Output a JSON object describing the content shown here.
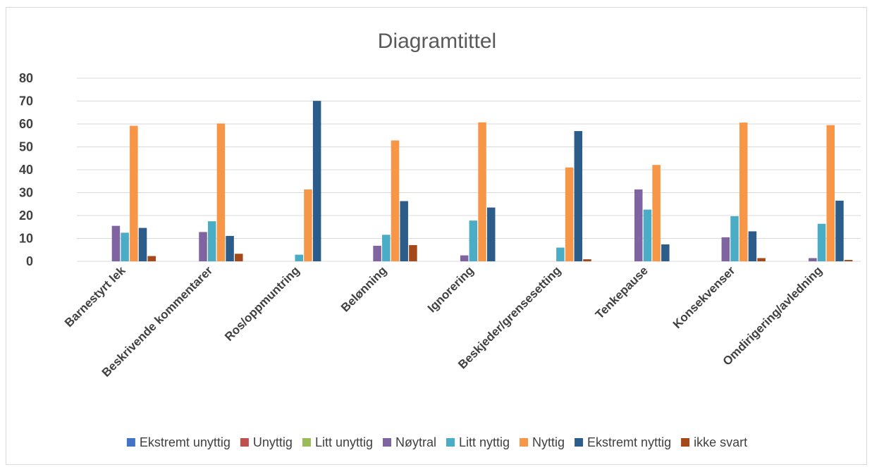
{
  "chart_data": {
    "type": "bar",
    "title": "Diagramtittel",
    "xlabel": "",
    "ylabel": "",
    "ylim": [
      0,
      80
    ],
    "yticks": [
      0,
      10,
      20,
      30,
      40,
      50,
      60,
      70,
      80
    ],
    "grid": true,
    "legend_position": "bottom",
    "categories": [
      "Barnestyrt lek",
      "Beskrivende kommentarer",
      "Ros/oppmuntring",
      "Belønning",
      "Ignorering",
      "Beskjeder/grensesetting",
      "Tenkepause",
      "Konsekvenser",
      "Omdirigering/avledning"
    ],
    "series": [
      {
        "name": "Ekstremt unyttig",
        "color": "#4472c4",
        "values": [
          0,
          0,
          0,
          0,
          0,
          0,
          0,
          0,
          0
        ]
      },
      {
        "name": "Unyttig",
        "color": "#c0504d",
        "values": [
          0,
          0,
          0,
          0,
          0,
          0,
          0,
          0,
          0
        ]
      },
      {
        "name": "Litt unyttig",
        "color": "#9bbb59",
        "values": [
          0,
          0,
          0,
          0,
          0,
          0,
          0,
          0,
          0
        ]
      },
      {
        "name": "Nøytral",
        "color": "#8064a2",
        "values": [
          15.5,
          12.8,
          0,
          6.8,
          2.6,
          0,
          31.4,
          10.5,
          1.4
        ]
      },
      {
        "name": "Litt nyttig",
        "color": "#4bacc6",
        "values": [
          12.5,
          17.5,
          2.9,
          11.6,
          17.8,
          6,
          22.6,
          19.7,
          16.4
        ]
      },
      {
        "name": "Nyttig",
        "color": "#f79646",
        "values": [
          59.2,
          60.2,
          31.4,
          52.8,
          60.7,
          41,
          42.1,
          60.6,
          59.5
        ]
      },
      {
        "name": "Ekstremt nyttig",
        "color": "#2c5d8a",
        "values": [
          14.6,
          11.1,
          70.1,
          26.3,
          23.5,
          56.9,
          7.4,
          13.1,
          26.5
        ]
      },
      {
        "name": "ikke svart",
        "color": "#a5491b",
        "values": [
          2.3,
          3.3,
          0,
          7.1,
          0,
          0.9,
          0,
          1.4,
          0.6
        ]
      }
    ]
  }
}
